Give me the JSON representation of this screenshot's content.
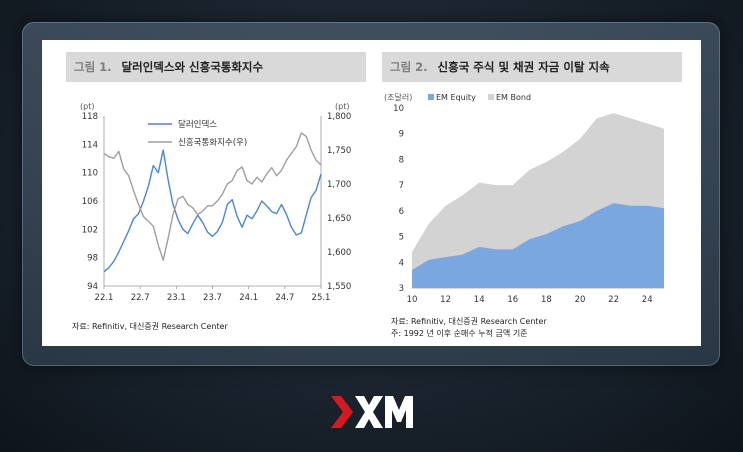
{
  "brand": {
    "name": "XM",
    "mark": "▶",
    "accent": "#d51920"
  },
  "left": {
    "fig_no": "그림 1.",
    "title": "달러인덱스와 신흥국통화지수",
    "source": "자료: Refinitiv, 대신증권 Research Center"
  },
  "right": {
    "fig_no": "그림 2.",
    "title": "신흥국 주식 및 채권 자금 이탈 지속",
    "source": "자료: Refinitiv, 대신증권 Research Center",
    "note": "주: 1992 년 이후 순매수 누적 금액 기준"
  },
  "chart_data": [
    {
      "type": "line",
      "x_ticks": [
        "22.1",
        "22.7",
        "23.1",
        "23.7",
        "24.1",
        "24.7",
        "25.1"
      ],
      "y_left": {
        "unit": "(pt)",
        "range": [
          94,
          118
        ],
        "ticks": [
          "118",
          "114",
          "110",
          "106",
          "102",
          "98",
          "94"
        ]
      },
      "y_right": {
        "unit": "(pt)",
        "range": [
          1550,
          1800
        ],
        "ticks": [
          "1,800",
          "1,750",
          "1,700",
          "1,650",
          "1,600",
          "1,550"
        ]
      },
      "series": [
        {
          "name": "달러인덱스",
          "axis": "left",
          "color": "#4a86d6",
          "points": [
            [
              0,
              96.0
            ],
            [
              1,
              96.6
            ],
            [
              2,
              97.5
            ],
            [
              3,
              98.8
            ],
            [
              4,
              100.3
            ],
            [
              5,
              101.8
            ],
            [
              6,
              103.5
            ],
            [
              7,
              104.2
            ],
            [
              8,
              106.0
            ],
            [
              9,
              108.1
            ],
            [
              10,
              111.0
            ],
            [
              11,
              110.0
            ],
            [
              12,
              113.2
            ],
            [
              13,
              109.0
            ],
            [
              14,
              105.5
            ],
            [
              15,
              103.4
            ],
            [
              16,
              102.0
            ],
            [
              17,
              101.4
            ],
            [
              18,
              102.8
            ],
            [
              19,
              104.0
            ],
            [
              20,
              103.0
            ],
            [
              21,
              101.6
            ],
            [
              22,
              101.0
            ],
            [
              23,
              101.7
            ],
            [
              24,
              103.0
            ],
            [
              25,
              105.5
            ],
            [
              26,
              106.2
            ],
            [
              27,
              103.8
            ],
            [
              28,
              102.3
            ],
            [
              29,
              104.0
            ],
            [
              30,
              103.5
            ],
            [
              31,
              104.6
            ],
            [
              32,
              106.0
            ],
            [
              33,
              105.3
            ],
            [
              34,
              104.5
            ],
            [
              35,
              104.2
            ],
            [
              36,
              105.5
            ],
            [
              37,
              104.1
            ],
            [
              38,
              102.3
            ],
            [
              39,
              101.2
            ],
            [
              40,
              101.5
            ],
            [
              41,
              104.0
            ],
            [
              42,
              106.5
            ],
            [
              43,
              107.5
            ],
            [
              44,
              109.8
            ]
          ]
        },
        {
          "name": "신흥국통화지수(우)",
          "axis": "right",
          "color": "#9e9e9e",
          "points": [
            [
              0,
              1745
            ],
            [
              1,
              1740
            ],
            [
              2,
              1738
            ],
            [
              3,
              1748
            ],
            [
              4,
              1722
            ],
            [
              5,
              1712
            ],
            [
              6,
              1690
            ],
            [
              7,
              1670
            ],
            [
              8,
              1652
            ],
            [
              9,
              1645
            ],
            [
              10,
              1638
            ],
            [
              11,
              1610
            ],
            [
              12,
              1588
            ],
            [
              13,
              1620
            ],
            [
              14,
              1655
            ],
            [
              15,
              1678
            ],
            [
              16,
              1682
            ],
            [
              17,
              1670
            ],
            [
              18,
              1665
            ],
            [
              19,
              1655
            ],
            [
              20,
              1660
            ],
            [
              21,
              1668
            ],
            [
              22,
              1668
            ],
            [
              23,
              1675
            ],
            [
              24,
              1685
            ],
            [
              25,
              1700
            ],
            [
              26,
              1705
            ],
            [
              27,
              1720
            ],
            [
              28,
              1725
            ],
            [
              29,
              1705
            ],
            [
              30,
              1700
            ],
            [
              31,
              1710
            ],
            [
              32,
              1703
            ],
            [
              33,
              1715
            ],
            [
              34,
              1724
            ],
            [
              35,
              1712
            ],
            [
              36,
              1720
            ],
            [
              37,
              1735
            ],
            [
              38,
              1745
            ],
            [
              39,
              1755
            ],
            [
              40,
              1775
            ],
            [
              41,
              1770
            ],
            [
              42,
              1750
            ],
            [
              43,
              1735
            ],
            [
              44,
              1728
            ]
          ]
        }
      ]
    },
    {
      "type": "area",
      "x_ticks": [
        "10",
        "12",
        "14",
        "16",
        "18",
        "20",
        "22",
        "24"
      ],
      "x_range": [
        2010,
        2025
      ],
      "y_unit": "(조달러)",
      "y_range": [
        3,
        10
      ],
      "y_ticks": [
        "10",
        "9",
        "8",
        "7",
        "6",
        "5",
        "4",
        "3"
      ],
      "series": [
        {
          "name": "EM Equity",
          "color": "#7aa7e0",
          "points": [
            [
              2010,
              3.7
            ],
            [
              2011,
              4.1
            ],
            [
              2012,
              4.2
            ],
            [
              2013,
              4.3
            ],
            [
              2014,
              4.6
            ],
            [
              2015,
              4.5
            ],
            [
              2016,
              4.5
            ],
            [
              2017,
              4.9
            ],
            [
              2018,
              5.1
            ],
            [
              2019,
              5.4
            ],
            [
              2020,
              5.6
            ],
            [
              2021,
              6.0
            ],
            [
              2022,
              6.3
            ],
            [
              2023,
              6.2
            ],
            [
              2024,
              6.2
            ],
            [
              2025,
              6.1
            ]
          ]
        },
        {
          "name": "EM Bond",
          "color": "#d3d3d3",
          "points": [
            [
              2010,
              4.4
            ],
            [
              2011,
              5.5
            ],
            [
              2012,
              6.2
            ],
            [
              2013,
              6.6
            ],
            [
              2014,
              7.1
            ],
            [
              2015,
              7.0
            ],
            [
              2016,
              7.0
            ],
            [
              2017,
              7.6
            ],
            [
              2018,
              7.9
            ],
            [
              2019,
              8.3
            ],
            [
              2020,
              8.8
            ],
            [
              2021,
              9.6
            ],
            [
              2022,
              9.8
            ],
            [
              2023,
              9.6
            ],
            [
              2024,
              9.4
            ],
            [
              2025,
              9.2
            ]
          ]
        }
      ]
    }
  ]
}
